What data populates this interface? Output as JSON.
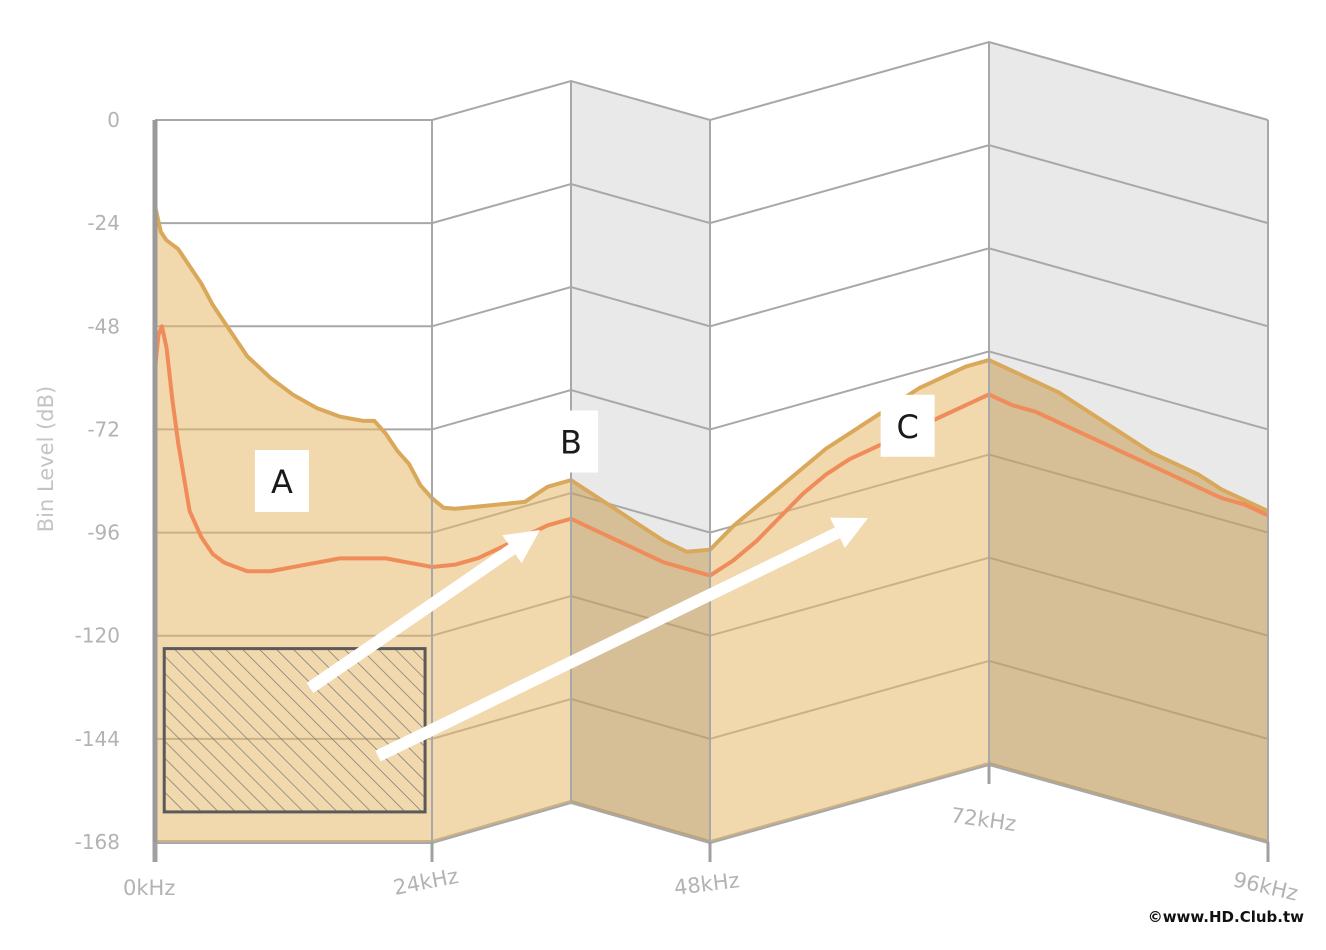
{
  "chart_data": {
    "type": "area",
    "ylabel": "Bin Level (dB)",
    "xlabel": "",
    "ylim": [
      -168,
      0
    ],
    "xlim": [
      0,
      96
    ],
    "y_ticks": [
      "0",
      "-24",
      "-48",
      "-72",
      "-96",
      "-120",
      "-144",
      "-168"
    ],
    "x_ticks": [
      "0kHz",
      "24kHz",
      "48kHz",
      "72kHz",
      "96kHz"
    ],
    "grid": true,
    "annotations": [
      {
        "label": "A",
        "x": 11,
        "y": -84
      },
      {
        "label": "B",
        "x": 36,
        "y": -84
      },
      {
        "label": "C",
        "x": 65,
        "y": -84
      }
    ],
    "hatched_region": {
      "x": [
        0.8,
        23.4
      ],
      "y": [
        -123,
        -161
      ]
    },
    "series": [
      {
        "x": [
          0,
          0.5,
          1,
          2,
          3,
          4,
          5,
          6,
          7,
          8,
          10,
          12,
          14,
          16,
          18,
          19,
          20,
          21,
          22,
          23,
          24,
          25,
          26,
          28,
          30,
          32,
          34,
          36,
          38,
          40,
          42,
          44,
          46,
          48,
          50,
          52,
          54,
          56,
          58,
          60,
          62,
          64,
          66,
          68,
          70,
          72,
          74,
          76,
          78,
          80,
          82,
          84,
          86,
          88,
          90,
          92,
          94,
          96
        ],
        "values": [
          -20,
          -26,
          -28,
          -30,
          -34,
          -38,
          -43,
          -47,
          -51,
          -55,
          -60,
          -64,
          -67,
          -69,
          -70,
          -70,
          -73,
          -77,
          -80,
          -85,
          -88,
          -91,
          -92,
          -93,
          -94,
          -95,
          -93,
          -93,
          -95,
          -97,
          -99,
          -101,
          -102,
          -100,
          -96,
          -93,
          -90,
          -87,
          -84,
          -82,
          -80,
          -78,
          -76,
          -75,
          -74,
          -74,
          -75,
          -76,
          -77,
          -79,
          -81,
          -83,
          -85,
          -86,
          -87,
          -89,
          -90,
          -91
        ]
      },
      {
        "x": [
          0,
          0.3,
          0.6,
          1,
          1.5,
          2,
          3,
          4,
          5,
          6,
          7,
          8,
          10,
          12,
          14,
          16,
          18,
          20,
          22,
          24,
          26,
          28,
          30,
          32,
          34,
          36,
          38,
          40,
          42,
          44,
          46,
          48,
          50,
          52,
          54,
          56,
          58,
          60,
          62,
          64,
          66,
          68,
          70,
          72,
          74,
          76,
          78,
          80,
          82,
          84,
          86,
          88,
          90,
          92,
          94,
          96
        ],
        "values": [
          -58,
          -50,
          -48,
          -53,
          -65,
          -75,
          -91,
          -97,
          -101,
          -103,
          -104,
          -105,
          -105,
          -104,
          -103,
          -102,
          -102,
          -102,
          -103,
          -104,
          -105,
          -105,
          -104,
          -103,
          -102,
          -102,
          -103,
          -104,
          -105,
          -106,
          -106,
          -106,
          -104,
          -101,
          -97,
          -93,
          -90,
          -88,
          -87,
          -86,
          -85,
          -84,
          -83,
          -82,
          -83,
          -83,
          -84,
          -85,
          -86,
          -87,
          -88,
          -89,
          -90,
          -91,
          -91,
          -92
        ]
      }
    ],
    "colors": {
      "upper_fill": "#e6b86a",
      "upper_line": "#d9a85a",
      "lower_line": "#ef8c5a",
      "grid": "#a8a8a8",
      "back_panel": "#e9e9e9",
      "arrow": "#ffffff"
    }
  },
  "credit": "©www.HD.Club.tw"
}
